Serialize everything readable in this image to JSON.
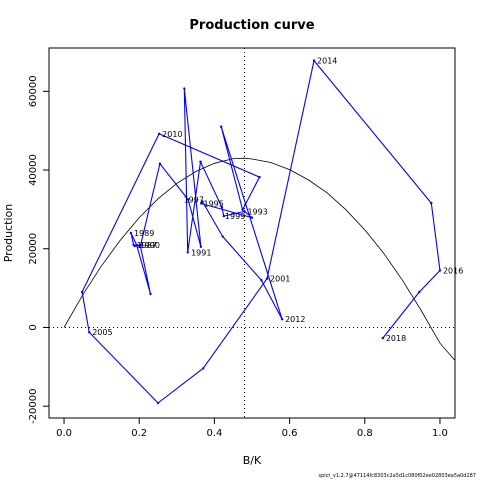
{
  "chart_data": {
    "type": "line",
    "title": "Production curve",
    "xlabel": "B/K",
    "ylabel": "Production",
    "xlim": [
      -0.04,
      1.04
    ],
    "ylim": [
      -23000,
      71000
    ],
    "x_ticks": [
      0.0,
      0.2,
      0.4,
      0.6,
      0.8,
      1.0
    ],
    "x_tick_labels": [
      "0.0",
      "0.2",
      "0.4",
      "0.6",
      "0.8",
      "1.0"
    ],
    "y_ticks": [
      -20000,
      0,
      20000,
      40000,
      60000
    ],
    "y_tick_labels": [
      "-20000",
      "0",
      "20000",
      "40000",
      "60000"
    ],
    "bmsy_ratio": 0.48,
    "colors": {
      "trajectory": "#0000ff",
      "curve": "#000000",
      "axes": "#000000"
    },
    "production_curve": {
      "name": "",
      "x": [
        0.0,
        0.05,
        0.1,
        0.15,
        0.2,
        0.25,
        0.3,
        0.35,
        0.4,
        0.45,
        0.48,
        0.5,
        0.55,
        0.6,
        0.65,
        0.7,
        0.75,
        0.8,
        0.85,
        0.9,
        0.95,
        1.0,
        1.04
      ],
      "y": [
        0,
        8300,
        15700,
        22200,
        27900,
        32700,
        36600,
        39600,
        41700,
        42900,
        43000,
        42800,
        41900,
        40100,
        37500,
        34200,
        29900,
        24800,
        18900,
        12000,
        4300,
        -4000,
        -8400
      ]
    },
    "series": [
      {
        "name": "",
        "x": [
          0.185,
          0.178,
          0.193,
          0.23,
          0.203,
          0.188,
          0.204,
          0.255,
          0.33,
          0.364,
          0.32,
          0.329,
          0.363,
          0.42,
          0.425,
          0.48,
          0.5,
          0.365,
          0.368,
          0.422,
          0.525,
          0.58,
          0.418,
          0.475,
          0.52,
          0.253,
          0.048,
          0.067,
          0.25,
          0.37,
          0.54,
          0.665,
          0.977,
          1.0,
          0.945,
          0.848
        ],
        "y": [
          21000,
          24000,
          21000,
          8500,
          20700,
          20700,
          21000,
          41600,
          32500,
          20500,
          60700,
          19100,
          42100,
          30500,
          28300,
          29500,
          27900,
          31500,
          32000,
          23100,
          12000,
          2100,
          51000,
          29900,
          38200,
          49200,
          9000,
          -1200,
          -19200,
          -10400,
          12400,
          67800,
          31600,
          14500,
          9000,
          -2700
        ],
        "labels": [
          {
            "text": "1987",
            "x": 0.185,
            "y": 21000
          },
          {
            "text": "1989",
            "x": 0.178,
            "y": 24000
          },
          {
            "text": "1990",
            "x": 0.193,
            "y": 21000
          },
          {
            "text": "1991",
            "x": 0.33,
            "y": 19100
          },
          {
            "text": "1993",
            "x": 0.48,
            "y": 29500
          },
          {
            "text": "1995",
            "x": 0.363,
            "y": 31500
          },
          {
            "text": "1997",
            "x": 0.31,
            "y": 32500
          },
          {
            "text": "1999",
            "x": 0.42,
            "y": 28300
          },
          {
            "text": "2001",
            "x": 0.54,
            "y": 12400
          },
          {
            "text": "2005",
            "x": 0.067,
            "y": -1200
          },
          {
            "text": "2010",
            "x": 0.253,
            "y": 49200
          },
          {
            "text": "2012",
            "x": 0.58,
            "y": 2100
          },
          {
            "text": "2014",
            "x": 0.665,
            "y": 67800
          },
          {
            "text": "2016",
            "x": 1.0,
            "y": 14500
          },
          {
            "text": "2018",
            "x": 0.848,
            "y": -2700
          }
        ]
      }
    ]
  },
  "footer": "spict_v1.2.7@47114fc8303c2a5d1c080f02ee02803ea5a0d287"
}
